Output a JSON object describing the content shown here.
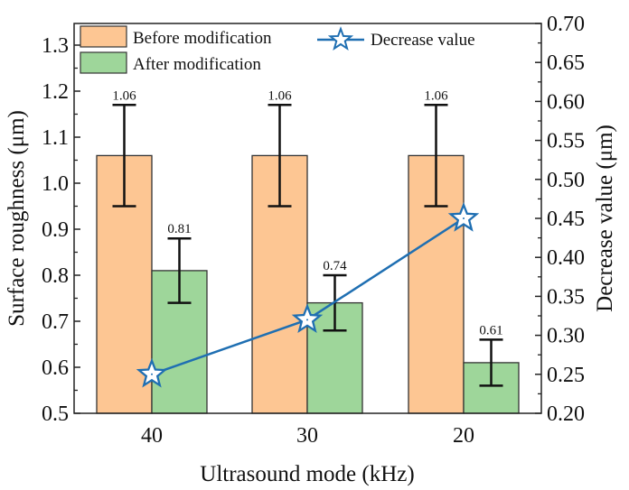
{
  "chart_data": {
    "type": "bar",
    "title": "",
    "xlabel": "Ultrasound mode (kHz)",
    "ylabel": "Surface roughness (μm)",
    "y2label": "Decrease value (μm)",
    "categories": [
      "40",
      "30",
      "20"
    ],
    "ylim": [
      0.5,
      1.35
    ],
    "yticks": [
      "0.5",
      "0.6",
      "0.7",
      "0.8",
      "0.9",
      "1.0",
      "1.1",
      "1.2",
      "1.3"
    ],
    "y2lim": [
      0.2,
      0.7
    ],
    "y2ticks": [
      "0.20",
      "0.25",
      "0.30",
      "0.35",
      "0.40",
      "0.45",
      "0.50",
      "0.55",
      "0.60",
      "0.65",
      "0.70"
    ],
    "grid": false,
    "legend_position": "top",
    "series": [
      {
        "name": "Before modification",
        "kind": "bar",
        "axis": "left",
        "color": "#FDC693",
        "values": [
          1.06,
          1.06,
          1.06
        ],
        "errors": [
          0.11,
          0.11,
          0.11
        ],
        "labels": [
          "1.06",
          "1.06",
          "1.06"
        ]
      },
      {
        "name": "After modification",
        "kind": "bar",
        "axis": "left",
        "color": "#9ED69A",
        "values": [
          0.81,
          0.74,
          0.61
        ],
        "errors": [
          0.07,
          0.06,
          0.05
        ],
        "labels": [
          "0.81",
          "0.74",
          "0.61"
        ]
      },
      {
        "name": "Decrease value",
        "kind": "line",
        "axis": "right",
        "marker": "star",
        "color": "#1F6FB2",
        "values": [
          0.25,
          0.32,
          0.45
        ]
      }
    ]
  }
}
